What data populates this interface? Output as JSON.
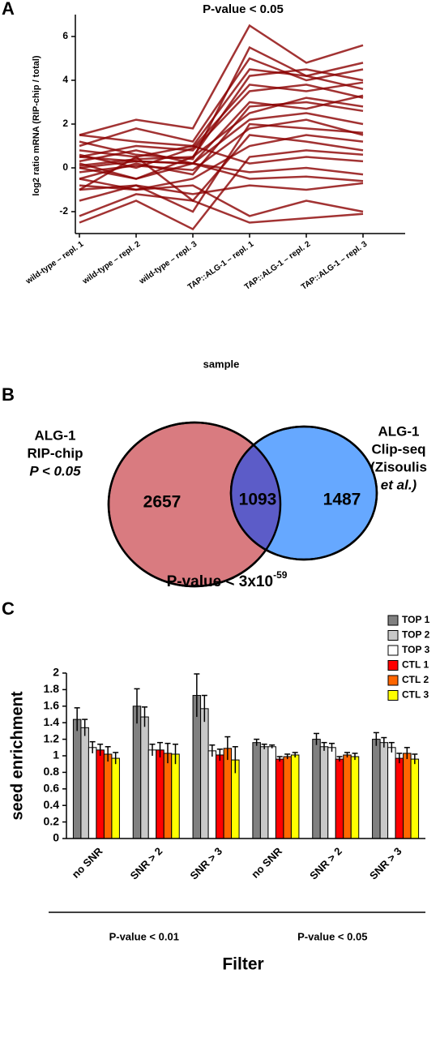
{
  "chart_data": [
    {
      "type": "line",
      "panel": "A",
      "title": "P-value < 0.05",
      "xlabel": "sample",
      "ylabel": "log2 ratio mRNA (RIP-chip / total)",
      "categories": [
        "wild-type – repl. 1",
        "wild-type – repl. 2",
        "wild-type – repl. 3",
        "TAP::ALG-1 – repl. 1",
        "TAP::ALG-1 – repl. 2",
        "TAP::ALG-1 – repl. 3"
      ],
      "ylim": [
        -3,
        7
      ],
      "yticks": [
        -2,
        0,
        2,
        4,
        6
      ],
      "color": "#8b0000",
      "series": [
        {
          "values": [
            0.5,
            1,
            0.8,
            3.5,
            3.8,
            3.2
          ]
        },
        {
          "values": [
            -0.5,
            0.2,
            -0.3,
            2.8,
            3.0,
            2.6
          ]
        },
        {
          "values": [
            0.2,
            -0.5,
            0.5,
            4.2,
            4.5,
            4.0
          ]
        },
        {
          "values": [
            1.5,
            2.2,
            1.8,
            6.5,
            4.8,
            5.6
          ]
        },
        {
          "values": [
            -1,
            0.5,
            -1.5,
            1.5,
            1.2,
            0.8
          ]
        },
        {
          "values": [
            0,
            0.3,
            0.2,
            2.2,
            2.5,
            2.0
          ]
        },
        {
          "values": [
            0.8,
            0.5,
            1.0,
            4.5,
            4.2,
            4.8
          ]
        },
        {
          "values": [
            -0.8,
            -1,
            -0.5,
            1.0,
            1.5,
            1.2
          ]
        },
        {
          "values": [
            0.3,
            0.8,
            0.2,
            3.0,
            2.7,
            3.3
          ]
        },
        {
          "values": [
            -1.5,
            -0.8,
            -2,
            2.0,
            1.8,
            1.6
          ]
        },
        {
          "values": [
            1.0,
            1.8,
            1.2,
            5.0,
            4.0,
            4.5
          ]
        },
        {
          "values": [
            -0.2,
            0.1,
            -0.1,
            1.8,
            2.2,
            1.5
          ]
        },
        {
          "values": [
            0.6,
            0,
            0.9,
            3.8,
            3.5,
            3.9
          ]
        },
        {
          "values": [
            -2.5,
            -1.5,
            -2.8,
            0.5,
            0.8,
            0.6
          ]
        },
        {
          "values": [
            0.1,
            0.4,
            0.5,
            2.5,
            3.2,
            2.8
          ]
        },
        {
          "values": [
            1.2,
            0.6,
            0.4,
            5.5,
            4.2,
            3.6
          ]
        },
        {
          "values": [
            0,
            -0.5,
            0.2,
            -0.5,
            -0.4,
            -0.6
          ]
        },
        {
          "values": [
            -0.5,
            -1,
            -0.8,
            -2.2,
            -1.5,
            -2.0
          ]
        },
        {
          "values": [
            0.5,
            0.3,
            0.2,
            -0.2,
            0,
            -0.3
          ]
        },
        {
          "values": [
            -1,
            -0.8,
            -1.2,
            -0.8,
            -1.0,
            -0.7
          ]
        },
        {
          "values": [
            1.5,
            1.2,
            1.0,
            0.2,
            0.5,
            0.3
          ]
        },
        {
          "values": [
            -2.2,
            -1.2,
            -1.5,
            -2.5,
            -2.3,
            -2.1
          ]
        }
      ]
    },
    {
      "type": "venn",
      "panel": "B",
      "left_label": [
        "ALG-1",
        "RIP-chip",
        "P < 0.05"
      ],
      "right_label": [
        "ALG-1",
        "Clip-seq",
        "(Zisoulis",
        "et al.)"
      ],
      "values": [
        2657,
        1093,
        1487
      ],
      "colors": [
        "#d97b80",
        "#5c5cc8",
        "#66a8ff"
      ],
      "caption": {
        "text": "P-value < 3x10",
        "superscript": "-59"
      }
    },
    {
      "type": "bar",
      "panel": "C",
      "xlabel": "Filter",
      "ylabel": "seed enrichment",
      "categories": [
        "no SNR",
        "SNR > 2",
        "SNR > 3",
        "no SNR",
        "SNR > 2",
        "SNR > 3"
      ],
      "groups": [
        {
          "label": "P-value < 0.01",
          "span": [
            0,
            2
          ]
        },
        {
          "label": "P-value < 0.05",
          "span": [
            3,
            5
          ]
        }
      ],
      "ylim": [
        0,
        2
      ],
      "yticks": [
        0,
        0.2,
        0.4,
        0.6,
        0.8,
        1,
        1.2,
        1.4,
        1.6,
        1.8,
        2
      ],
      "series": [
        {
          "name": "TOP 1",
          "color": "#808080",
          "values": [
            1.44,
            1.6,
            1.73,
            1.16,
            1.2,
            1.2
          ],
          "errors": [
            0.14,
            0.21,
            0.26,
            0.04,
            0.07,
            0.08
          ]
        },
        {
          "name": "TOP 2",
          "color": "#c8c8c8",
          "values": [
            1.34,
            1.47,
            1.57,
            1.11,
            1.11,
            1.16
          ],
          "errors": [
            0.1,
            0.12,
            0.16,
            0.03,
            0.05,
            0.06
          ]
        },
        {
          "name": "TOP 3",
          "color": "#ffffff",
          "values": [
            1.1,
            1.07,
            1.06,
            1.11,
            1.1,
            1.1
          ],
          "errors": [
            0.07,
            0.07,
            0.07,
            0.02,
            0.05,
            0.06
          ]
        },
        {
          "name": "CTL 1",
          "color": "#ff0000",
          "values": [
            1.07,
            1.07,
            1.01,
            0.96,
            0.96,
            0.97
          ],
          "errors": [
            0.07,
            0.09,
            0.07,
            0.03,
            0.03,
            0.06
          ]
        },
        {
          "name": "CTL 2",
          "color": "#ff6600",
          "values": [
            1.02,
            1.03,
            1.09,
            0.99,
            1.01,
            1.03
          ],
          "errors": [
            0.09,
            0.12,
            0.14,
            0.03,
            0.03,
            0.07
          ]
        },
        {
          "name": "CTL 3",
          "color": "#ffff00",
          "values": [
            0.97,
            1.02,
            0.95,
            1.01,
            0.99,
            0.96
          ],
          "errors": [
            0.07,
            0.12,
            0.16,
            0.03,
            0.04,
            0.06
          ]
        }
      ]
    }
  ]
}
